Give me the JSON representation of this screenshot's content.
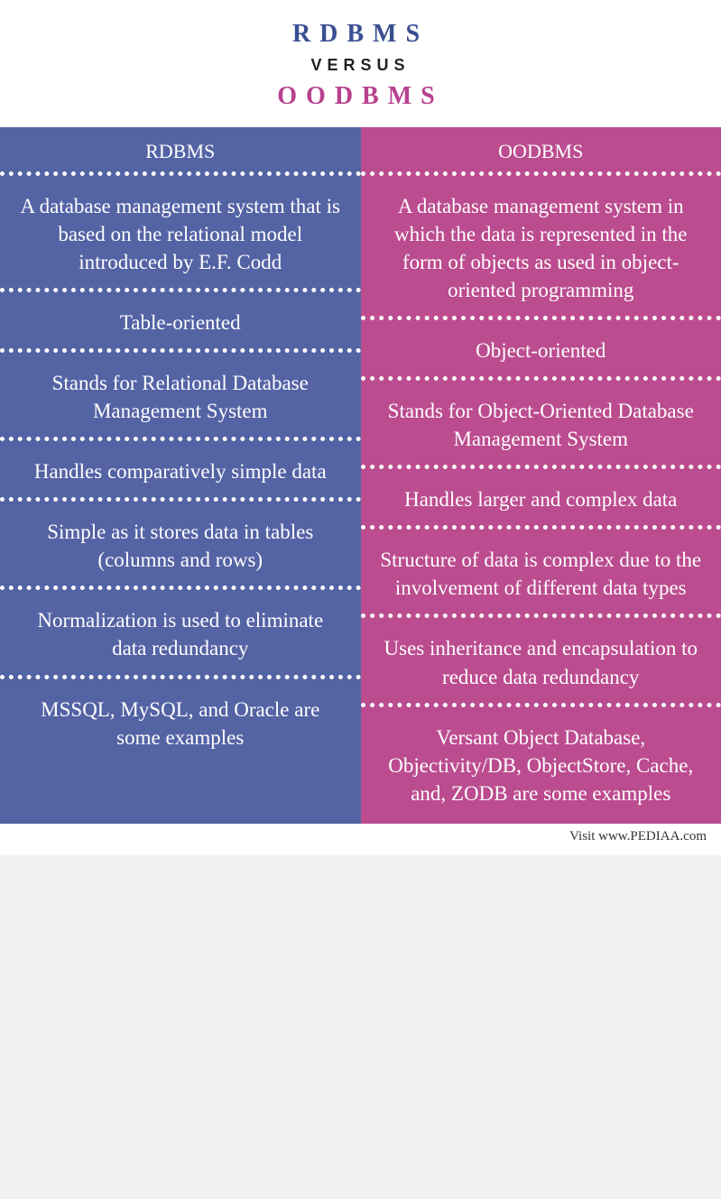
{
  "header": {
    "title_left": "RDBMS",
    "versus": "VERSUS",
    "title_right": "OODBMS",
    "title_left_color": "#3a4f91",
    "title_right_color": "#b7418e"
  },
  "columns": {
    "left": {
      "bg_color": "#5463a4",
      "header": "RDBMS"
    },
    "right": {
      "bg_color": "#bb4c8f",
      "header": "OODBMS"
    }
  },
  "rows": [
    {
      "left": "A database management system that is based on the relational model introduced by E.F. Codd",
      "right": "A database management system in which the data is represented in the form of objects as used in object-oriented programming"
    },
    {
      "left": "Table-oriented",
      "right": "Object-oriented"
    },
    {
      "left": "Stands for Relational Database Management System",
      "right": "Stands for Object-Oriented Database Management System"
    },
    {
      "left": "Handles comparatively simple data",
      "right": "Handles larger and complex data"
    },
    {
      "left": "Simple as it stores data in tables (columns and rows)",
      "right": "Structure of data is complex due to the involvement of different data types"
    },
    {
      "left": "Normalization is used to eliminate data redundancy",
      "right": "Uses inheritance and encapsulation to reduce data redundancy"
    },
    {
      "left": "MSSQL, MySQL, and Oracle are some examples",
      "right": "Versant Object Database, Objectivity/DB, ObjectStore, Cache, and, ZODB are some examples"
    }
  ],
  "footer": {
    "text": "Visit www.PEDIAA.com"
  },
  "style": {
    "text_color": "#ffffff",
    "divider_color": "#ffffff",
    "cell_fontsize": 23,
    "header_fontsize": 22,
    "title_fontsize": 28,
    "letter_spacing_title": 10,
    "font_family": "Georgia"
  }
}
